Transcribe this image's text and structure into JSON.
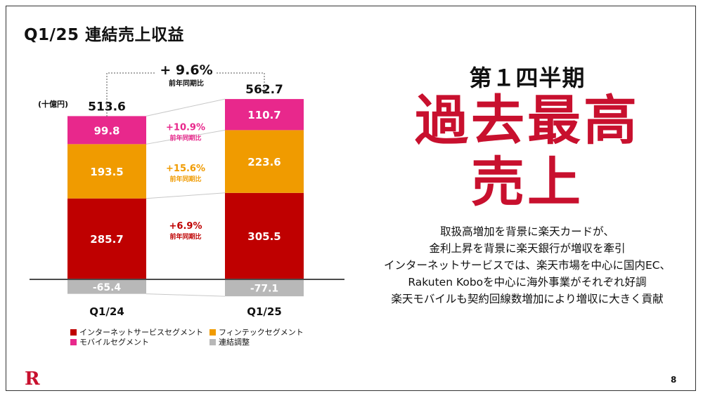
{
  "title": "Q1/25 連結売上収益",
  "unit": "(十億円)",
  "chart_data": {
    "type": "bar",
    "stacked": true,
    "categories": [
      "Q1/24",
      "Q1/25"
    ],
    "totals": [
      513.6,
      562.7
    ],
    "series": [
      {
        "name": "インターネットサービスセグメント",
        "color": "#bf0000",
        "values": [
          285.7,
          305.5
        ],
        "labels": [
          "285.7",
          "305.5"
        ],
        "growth": "+6.9%",
        "growth_note": "前年同期比"
      },
      {
        "name": "フィンテックセグメント",
        "color": "#f09b00",
        "values": [
          193.5,
          223.6
        ],
        "labels": [
          "193.5",
          "223.6"
        ],
        "growth": "+15.6%",
        "growth_note": "前年同期比"
      },
      {
        "name": "モバイルセグメント",
        "color": "#e8288c",
        "values": [
          99.8,
          110.7
        ],
        "labels": [
          "99.8",
          "110.7"
        ],
        "growth": "+10.9%",
        "growth_note": "前年同期比"
      },
      {
        "name": "連結調整",
        "color": "#b8b8b8",
        "values": [
          -65.4,
          -77.1
        ],
        "labels": [
          "-65.4",
          "-77.1"
        ]
      }
    ],
    "total_growth": "+ 9.6%",
    "total_growth_note": "前年同期比"
  },
  "headline": {
    "quarter": "第１四半期",
    "record": "過去最高",
    "record2": "売上"
  },
  "description": [
    "取扱高増加を背景に楽天カードが、",
    "金利上昇を背景に楽天銀行が増収を牽引",
    "インターネットサービスでは、楽天市場を中心に国内EC、",
    "Rakuten Koboを中心に海外事業がそれぞれ好調",
    "楽天モバイルも契約回線数増加により増収に大きく貢献"
  ],
  "logo": "R",
  "page_number": "8"
}
